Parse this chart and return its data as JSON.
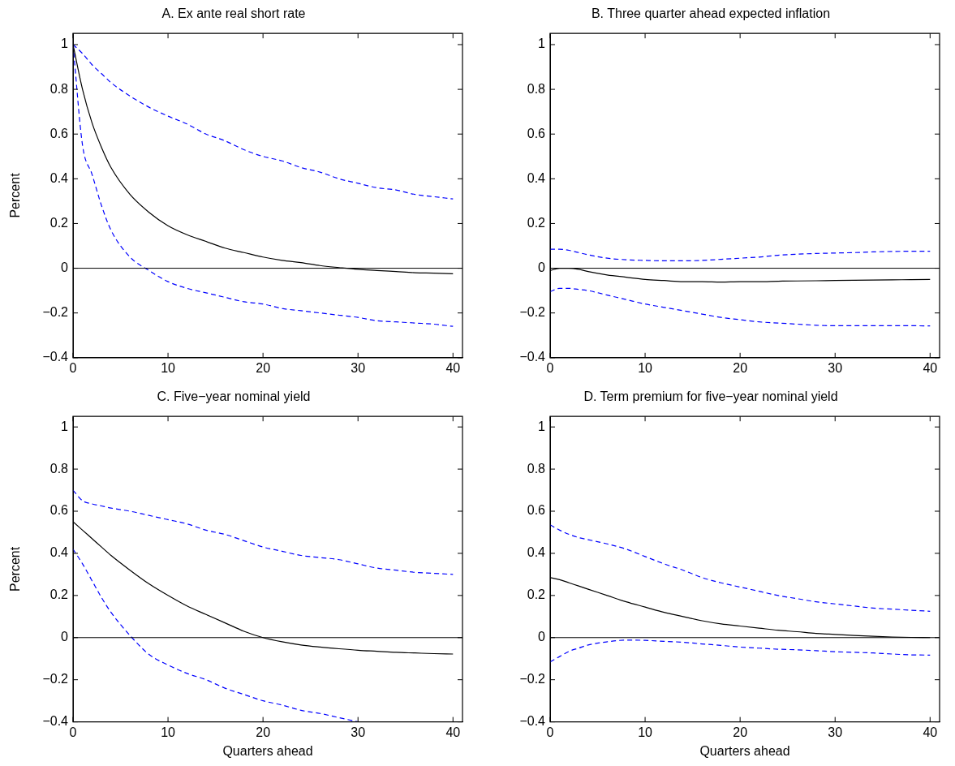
{
  "chart_data": [
    {
      "type": "line",
      "title": "A. Ex ante real short rate",
      "ylabel": "Percent",
      "x": [
        0,
        1,
        2,
        3,
        4,
        6,
        8,
        10,
        12,
        14,
        16,
        18,
        20,
        22,
        24,
        26,
        28,
        30,
        32,
        34,
        36,
        38,
        40
      ],
      "xlim": [
        0,
        41
      ],
      "xticks": [
        0,
        10,
        20,
        30,
        40
      ],
      "ylim": [
        -0.4,
        1.05
      ],
      "yticks": [
        -0.4,
        -0.2,
        0,
        0.2,
        0.4,
        0.6,
        0.8,
        1
      ],
      "marker": "none",
      "ref_lines": [
        {
          "axis": "y",
          "value": 0,
          "color": "#000000"
        }
      ],
      "series": [
        {
          "color": "#000000",
          "line_style": "solid",
          "values": [
            1.0,
            0.8,
            0.65,
            0.54,
            0.45,
            0.33,
            0.25,
            0.19,
            0.15,
            0.12,
            0.09,
            0.07,
            0.05,
            0.035,
            0.025,
            0.012,
            0.003,
            -0.005,
            -0.01,
            -0.015,
            -0.02,
            -0.022,
            -0.025
          ]
        },
        {
          "color": "#0000ff",
          "line_style": "dashed",
          "values": [
            1.0,
            0.96,
            0.91,
            0.87,
            0.83,
            0.77,
            0.72,
            0.68,
            0.645,
            0.6,
            0.57,
            0.53,
            0.5,
            0.48,
            0.45,
            0.43,
            0.4,
            0.38,
            0.36,
            0.35,
            0.33,
            0.32,
            0.31
          ]
        },
        {
          "color": "#0000ff",
          "line_style": "dashed",
          "values": [
            1.0,
            0.55,
            0.42,
            0.28,
            0.17,
            0.05,
            -0.01,
            -0.06,
            -0.09,
            -0.11,
            -0.13,
            -0.15,
            -0.16,
            -0.18,
            -0.19,
            -0.2,
            -0.21,
            -0.22,
            -0.235,
            -0.24,
            -0.245,
            -0.25,
            -0.26
          ]
        }
      ]
    },
    {
      "type": "line",
      "title": "B. Three quarter ahead expected inflation",
      "x": [
        0,
        1,
        2,
        3,
        4,
        6,
        8,
        10,
        12,
        14,
        16,
        18,
        20,
        22,
        24,
        26,
        28,
        30,
        32,
        34,
        36,
        38,
        40
      ],
      "xlim": [
        0,
        41
      ],
      "xticks": [
        0,
        10,
        20,
        30,
        40
      ],
      "ylim": [
        -0.4,
        1.05
      ],
      "yticks": [
        -0.4,
        -0.2,
        0,
        0.2,
        0.4,
        0.6,
        0.8,
        1
      ],
      "marker": "none",
      "ref_lines": [
        {
          "axis": "y",
          "value": 0,
          "color": "#000000"
        }
      ],
      "series": [
        {
          "color": "#000000",
          "line_style": "solid",
          "values": [
            -0.01,
            0.0,
            0.0,
            -0.005,
            -0.015,
            -0.03,
            -0.04,
            -0.05,
            -0.055,
            -0.06,
            -0.06,
            -0.062,
            -0.06,
            -0.06,
            -0.058,
            -0.057,
            -0.056,
            -0.055,
            -0.054,
            -0.053,
            -0.052,
            -0.051,
            -0.05
          ]
        },
        {
          "color": "#0000ff",
          "line_style": "dashed",
          "values": [
            0.085,
            0.085,
            0.08,
            0.07,
            0.06,
            0.045,
            0.038,
            0.035,
            0.033,
            0.033,
            0.035,
            0.04,
            0.045,
            0.05,
            0.058,
            0.063,
            0.066,
            0.068,
            0.07,
            0.073,
            0.075,
            0.076,
            0.076
          ]
        },
        {
          "color": "#0000ff",
          "line_style": "dashed",
          "values": [
            -0.105,
            -0.09,
            -0.09,
            -0.095,
            -0.1,
            -0.12,
            -0.14,
            -0.16,
            -0.175,
            -0.19,
            -0.205,
            -0.22,
            -0.23,
            -0.24,
            -0.245,
            -0.25,
            -0.255,
            -0.257,
            -0.257,
            -0.257,
            -0.257,
            -0.257,
            -0.258
          ]
        }
      ]
    },
    {
      "type": "line",
      "title": "C. Five−year nominal yield",
      "xlabel": "Quarters ahead",
      "ylabel": "Percent",
      "x": [
        0,
        1,
        2,
        3,
        4,
        6,
        8,
        10,
        12,
        14,
        16,
        18,
        20,
        22,
        24,
        26,
        28,
        30,
        32,
        34,
        36,
        38,
        40
      ],
      "xlim": [
        0,
        41
      ],
      "xticks": [
        0,
        10,
        20,
        30,
        40
      ],
      "ylim": [
        -0.4,
        1.05
      ],
      "yticks": [
        -0.4,
        -0.2,
        0,
        0.2,
        0.4,
        0.6,
        0.8,
        1
      ],
      "marker": "none",
      "ref_lines": [
        {
          "axis": "y",
          "value": 0,
          "color": "#000000"
        }
      ],
      "series": [
        {
          "color": "#000000",
          "line_style": "solid",
          "values": [
            0.55,
            0.51,
            0.47,
            0.43,
            0.39,
            0.32,
            0.255,
            0.2,
            0.15,
            0.11,
            0.07,
            0.03,
            0.0,
            -0.02,
            -0.035,
            -0.045,
            -0.053,
            -0.06,
            -0.065,
            -0.07,
            -0.073,
            -0.076,
            -0.078
          ]
        },
        {
          "color": "#0000ff",
          "line_style": "dashed",
          "values": [
            0.7,
            0.65,
            0.635,
            0.625,
            0.615,
            0.6,
            0.58,
            0.56,
            0.54,
            0.51,
            0.49,
            0.46,
            0.43,
            0.41,
            0.39,
            0.38,
            0.37,
            0.35,
            0.33,
            0.32,
            0.31,
            0.305,
            0.3
          ]
        },
        {
          "color": "#0000ff",
          "line_style": "dashed",
          "values": [
            0.42,
            0.35,
            0.27,
            0.19,
            0.12,
            0.01,
            -0.08,
            -0.13,
            -0.17,
            -0.2,
            -0.24,
            -0.27,
            -0.3,
            -0.32,
            -0.345,
            -0.36,
            -0.38,
            -0.4,
            null,
            null,
            null,
            null,
            null
          ]
        }
      ]
    },
    {
      "type": "line",
      "title": "D. Term premium for five−year nominal yield",
      "xlabel": "Quarters ahead",
      "x": [
        0,
        1,
        2,
        3,
        4,
        6,
        8,
        10,
        12,
        14,
        16,
        18,
        20,
        22,
        24,
        26,
        28,
        30,
        32,
        34,
        36,
        38,
        40
      ],
      "xlim": [
        0,
        41
      ],
      "xticks": [
        0,
        10,
        20,
        30,
        40
      ],
      "ylim": [
        -0.4,
        1.05
      ],
      "yticks": [
        -0.4,
        -0.2,
        0,
        0.2,
        0.4,
        0.6,
        0.8,
        1
      ],
      "marker": "none",
      "ref_lines": [
        {
          "axis": "y",
          "value": 0,
          "color": "#000000"
        }
      ],
      "series": [
        {
          "color": "#000000",
          "line_style": "solid",
          "values": [
            0.285,
            0.275,
            0.26,
            0.245,
            0.23,
            0.2,
            0.17,
            0.145,
            0.12,
            0.1,
            0.08,
            0.065,
            0.055,
            0.045,
            0.035,
            0.028,
            0.02,
            0.015,
            0.01,
            0.006,
            0.003,
            0.001,
            0.0
          ]
        },
        {
          "color": "#0000ff",
          "line_style": "dashed",
          "values": [
            0.535,
            0.51,
            0.49,
            0.475,
            0.465,
            0.445,
            0.42,
            0.385,
            0.35,
            0.32,
            0.285,
            0.26,
            0.24,
            0.22,
            0.2,
            0.185,
            0.17,
            0.16,
            0.15,
            0.14,
            0.135,
            0.13,
            0.125
          ]
        },
        {
          "color": "#0000ff",
          "line_style": "dashed",
          "values": [
            -0.115,
            -0.09,
            -0.065,
            -0.05,
            -0.035,
            -0.02,
            -0.012,
            -0.013,
            -0.018,
            -0.022,
            -0.03,
            -0.037,
            -0.045,
            -0.05,
            -0.055,
            -0.058,
            -0.062,
            -0.067,
            -0.07,
            -0.073,
            -0.078,
            -0.082,
            -0.083
          ]
        }
      ]
    }
  ]
}
